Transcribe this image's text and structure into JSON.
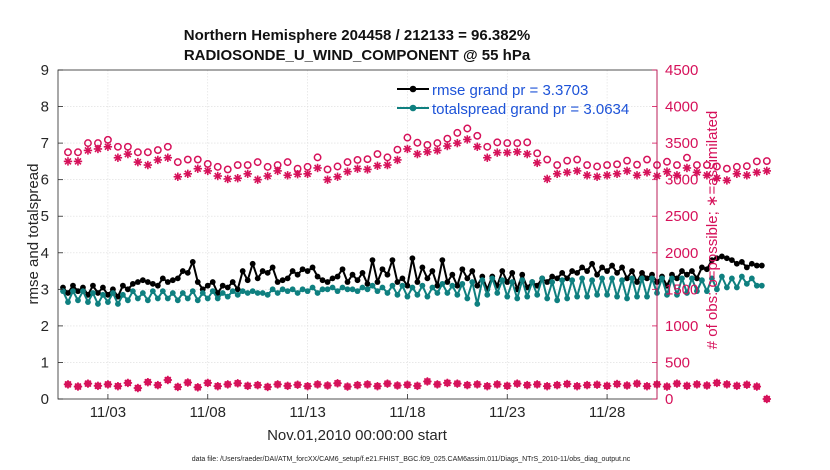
{
  "chart_data": {
    "type": "line",
    "title_line1": "Northern Hemisphere 204458 / 212133 = 96.382%",
    "title_line2": "RADIOSONDE_U_WIND_COMPONENT @ 55 hPa",
    "xlabel": "Nov.01,2010 00:00:00 start",
    "ylabel_left": "rmse and totalspread",
    "ylabel_right": "# of obs: o=possible; ∗=assimilated",
    "footer": "data file: /Users/raeder/DAI/ATM_forcXX/CAM6_setup/f.e21.FHIST_BGC.f09_025.CAM6assim.011/Diags_NTrS_2010-11/obs_diag_output.nc",
    "xlim_days": [
      0.5,
      30.5
    ],
    "ylim_left": [
      0,
      9
    ],
    "ylim_right": [
      0,
      4500
    ],
    "x_ticks": [
      {
        "day": 3,
        "label": "11/03"
      },
      {
        "day": 8,
        "label": "11/08"
      },
      {
        "day": 13,
        "label": "11/13"
      },
      {
        "day": 18,
        "label": "11/18"
      },
      {
        "day": 23,
        "label": "11/23"
      },
      {
        "day": 28,
        "label": "11/28"
      }
    ],
    "y_ticks_left": [
      0,
      1,
      2,
      3,
      4,
      5,
      6,
      7,
      8,
      9
    ],
    "y_ticks_right": [
      0,
      500,
      1000,
      1500,
      2000,
      2500,
      3000,
      3500,
      4000,
      4500
    ],
    "grid": true,
    "legend_position": "top-right",
    "legend": [
      {
        "label": "rmse grand pr = 3.3703",
        "color": "#000000"
      },
      {
        "label": "totalspread grand pr = 3.0634",
        "color": "#0f8080"
      }
    ],
    "x_start_day": 0.75,
    "x_step_days": 0.25,
    "series": [
      {
        "name": "rmse grand pr = 3.3703",
        "axis": "left",
        "color": "#000000",
        "values": [
          3.05,
          2.9,
          3.1,
          2.95,
          3.05,
          2.85,
          3.1,
          2.9,
          3.05,
          2.85,
          3.0,
          2.8,
          3.1,
          3.0,
          3.15,
          3.2,
          3.25,
          3.2,
          3.15,
          3.1,
          3.3,
          3.2,
          3.25,
          3.3,
          3.5,
          3.45,
          3.75,
          3.2,
          3.0,
          3.1,
          3.2,
          2.9,
          3.1,
          3.05,
          3.2,
          3.0,
          3.5,
          3.25,
          3.7,
          3.3,
          3.5,
          3.45,
          3.6,
          3.2,
          3.25,
          3.3,
          3.5,
          3.4,
          3.55,
          3.5,
          3.6,
          3.35,
          3.25,
          3.2,
          3.3,
          3.35,
          3.55,
          3.2,
          3.4,
          3.25,
          3.45,
          3.15,
          3.8,
          3.2,
          3.55,
          3.4,
          3.8,
          3.2,
          3.3,
          3.1,
          3.85,
          3.2,
          3.6,
          3.3,
          3.5,
          3.1,
          3.8,
          3.2,
          3.4,
          3.1,
          3.55,
          3.3,
          3.5,
          3.1,
          3.35,
          3.0,
          3.35,
          3.1,
          3.5,
          3.2,
          3.45,
          3.0,
          3.4,
          3.05,
          3.2,
          3.1,
          3.3,
          3.2,
          3.35,
          3.3,
          3.45,
          3.3,
          3.5,
          3.45,
          3.6,
          3.5,
          3.7,
          3.4,
          3.6,
          3.5,
          3.65,
          3.45,
          3.6,
          3.3,
          3.5,
          3.2,
          3.45,
          3.3,
          3.4,
          3.2,
          3.35,
          3.1,
          3.4,
          3.3,
          3.5,
          3.4,
          3.5,
          3.3,
          3.6,
          3.55,
          3.8,
          3.85,
          3.9,
          3.85,
          3.8,
          3.7,
          3.75,
          3.6,
          3.7,
          3.65,
          3.65
        ]
      },
      {
        "name": "totalspread grand pr = 3.0634",
        "axis": "left",
        "color": "#0f8080",
        "values": [
          2.95,
          2.65,
          2.95,
          2.7,
          2.95,
          2.65,
          2.9,
          2.6,
          2.85,
          2.65,
          2.9,
          2.6,
          2.85,
          2.7,
          2.95,
          2.75,
          2.9,
          2.7,
          2.95,
          2.75,
          2.95,
          2.75,
          2.9,
          2.7,
          2.9,
          2.75,
          2.95,
          2.7,
          2.9,
          2.75,
          2.95,
          2.75,
          2.9,
          2.8,
          2.95,
          2.85,
          2.95,
          2.9,
          2.95,
          2.9,
          2.9,
          2.85,
          3.0,
          2.9,
          3.0,
          2.95,
          3.0,
          2.9,
          3.0,
          2.95,
          3.05,
          2.9,
          3.0,
          3.0,
          3.05,
          2.95,
          3.05,
          3.0,
          3.0,
          2.95,
          3.05,
          3.0,
          3.1,
          2.95,
          3.05,
          2.9,
          3.1,
          2.85,
          3.1,
          2.8,
          3.05,
          2.85,
          3.1,
          2.8,
          3.05,
          2.9,
          3.15,
          2.9,
          3.1,
          2.85,
          3.15,
          2.75,
          3.2,
          2.6,
          3.25,
          2.85,
          3.3,
          2.9,
          3.25,
          2.8,
          3.2,
          2.75,
          3.25,
          2.8,
          3.2,
          2.85,
          3.3,
          2.75,
          3.2,
          2.7,
          3.25,
          2.75,
          3.25,
          2.8,
          3.3,
          2.8,
          3.25,
          2.85,
          3.3,
          2.85,
          3.3,
          2.8,
          3.25,
          2.75,
          3.3,
          2.8,
          3.3,
          2.8,
          3.3,
          2.9,
          3.3,
          2.85,
          3.3,
          2.85,
          3.3,
          2.9,
          3.3,
          2.95,
          3.25,
          2.95,
          3.3,
          3.0,
          3.35,
          3.05,
          3.3,
          3.05,
          3.35,
          3.15,
          3.3,
          3.1,
          3.1
        ]
      },
      {
        "name": "possible",
        "axis": "right",
        "color": "#d6115a",
        "marker": "o",
        "x_start_day": 1.0,
        "x_step_days": 0.5,
        "values": [
          3375,
          3375,
          3500,
          3500,
          3545,
          3450,
          3450,
          3375,
          3375,
          3405,
          3450,
          3240,
          3275,
          3275,
          3215,
          3175,
          3140,
          3200,
          3200,
          3240,
          3175,
          3200,
          3240,
          3150,
          3175,
          3305,
          3140,
          3180,
          3240,
          3270,
          3280,
          3350,
          3305,
          3410,
          3575,
          3505,
          3475,
          3500,
          3560,
          3640,
          3700,
          3600,
          3450,
          3510,
          3500,
          3500,
          3510,
          3360,
          3275,
          3200,
          3260,
          3275,
          3200,
          3180,
          3200,
          3210,
          3260,
          3205,
          3275,
          3200,
          3245,
          3200,
          3300,
          3200,
          3200,
          3180,
          3150,
          3175,
          3185,
          3250,
          3255
        ]
      },
      {
        "name": "assimilated",
        "axis": "right",
        "color": "#d6115a",
        "marker": "*",
        "x_start_day": 1.0,
        "x_step_days": 0.5,
        "values": [
          3250,
          3250,
          3400,
          3420,
          3450,
          3300,
          3350,
          3240,
          3200,
          3270,
          3300,
          3040,
          3080,
          3150,
          3120,
          3050,
          3010,
          3020,
          3080,
          3000,
          3050,
          3120,
          3060,
          3075,
          3080,
          3160,
          3000,
          3040,
          3110,
          3150,
          3140,
          3190,
          3200,
          3270,
          3420,
          3350,
          3380,
          3400,
          3460,
          3500,
          3550,
          3450,
          3300,
          3370,
          3370,
          3380,
          3350,
          3230,
          3010,
          3080,
          3100,
          3120,
          3060,
          3040,
          3060,
          3080,
          3120,
          3060,
          3100,
          3050,
          3110,
          3060,
          3160,
          3100,
          3060,
          3020,
          2990,
          3080,
          3060,
          3100,
          3120
        ]
      },
      {
        "name": "obs-count-lower",
        "axis": "right",
        "color": "#d6115a",
        "marker": "o*",
        "x_start_day": 1.0,
        "x_step_days": 0.5,
        "values": [
          200,
          170,
          210,
          180,
          200,
          175,
          220,
          150,
          230,
          190,
          260,
          165,
          225,
          160,
          220,
          175,
          200,
          215,
          180,
          190,
          165,
          200,
          180,
          195,
          175,
          200,
          185,
          215,
          170,
          190,
          200,
          175,
          210,
          185,
          195,
          180,
          240,
          200,
          220,
          210,
          190,
          200,
          175,
          200,
          180,
          210,
          190,
          200,
          175,
          190,
          205,
          175,
          190,
          195,
          180,
          205,
          185,
          210,
          175,
          200,
          170,
          210,
          180,
          200,
          185,
          220,
          200,
          180,
          195,
          170,
          0
        ]
      }
    ]
  }
}
